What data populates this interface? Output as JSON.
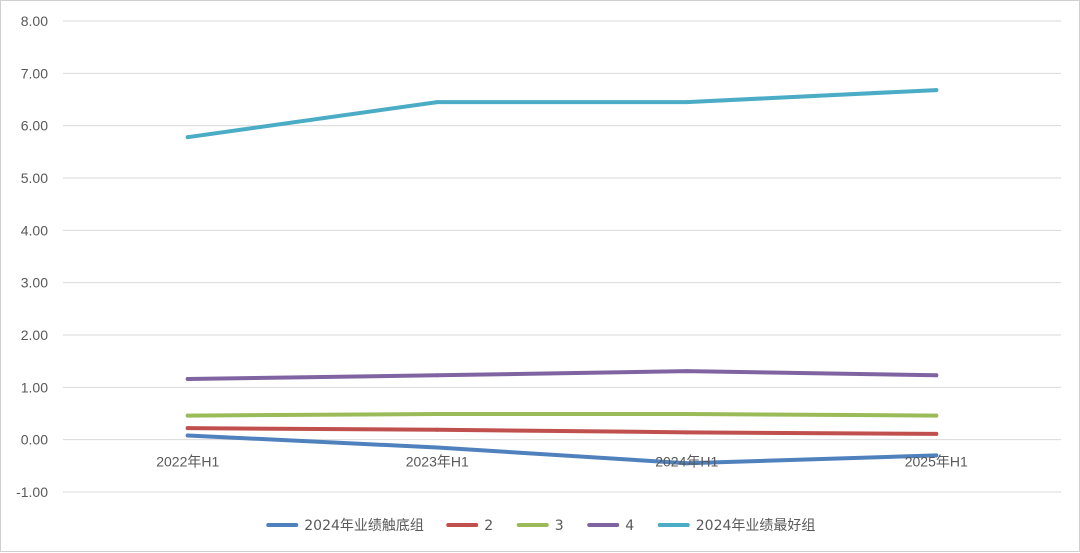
{
  "chart_data": {
    "type": "line",
    "title": "",
    "xlabel": "",
    "ylabel": "",
    "categories": [
      "2022年H1",
      "2023年H1",
      "2024年H1",
      "2025年H1"
    ],
    "ylim": [
      -1.0,
      8.0
    ],
    "yticks": [
      "8.00",
      "7.00",
      "6.00",
      "5.00",
      "4.00",
      "3.00",
      "2.00",
      "1.00",
      "0.00",
      "-1.00"
    ],
    "grid": true,
    "legend_position": "bottom",
    "series": [
      {
        "name": "2024年业绩触底组",
        "color": "#4f81bd",
        "values": [
          0.08,
          -0.15,
          -0.45,
          -0.3
        ]
      },
      {
        "name": "2",
        "color": "#c0504d",
        "values": [
          0.22,
          0.19,
          0.14,
          0.11
        ]
      },
      {
        "name": "3",
        "color": "#9bbb59",
        "values": [
          0.46,
          0.49,
          0.49,
          0.46
        ]
      },
      {
        "name": "4",
        "color": "#8064a2",
        "values": [
          1.16,
          1.23,
          1.31,
          1.23
        ]
      },
      {
        "name": "2024年业绩最好组",
        "color": "#4bacc6",
        "values": [
          5.78,
          6.45,
          6.45,
          6.68
        ]
      }
    ]
  }
}
